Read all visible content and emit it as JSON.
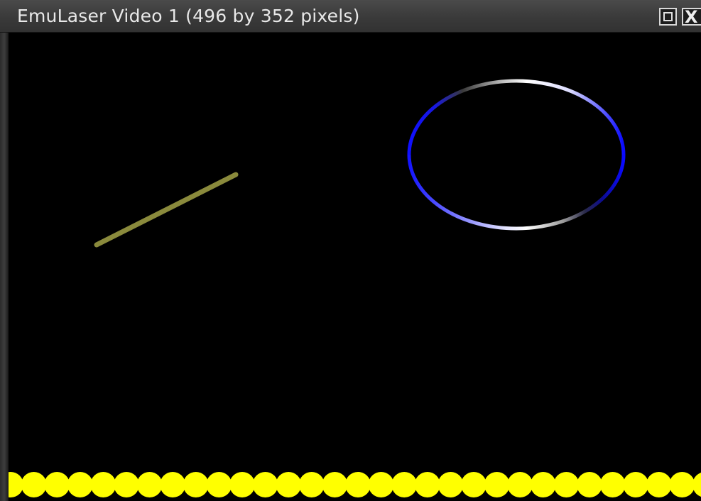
{
  "window": {
    "title": "EmuLaser Video 1 (496 by 352 pixels)",
    "maximize_icon": "maximize-icon",
    "close_icon": "close-icon",
    "close_glyph": "X"
  },
  "display": {
    "background_color": "#000000",
    "shapes": [
      {
        "type": "line",
        "name": "laser-line",
        "color": "#8a8a3c"
      },
      {
        "type": "ellipse",
        "name": "laser-ellipse",
        "colors": [
          "#1a1aff",
          "#d0d0ff",
          "#ffffff"
        ]
      },
      {
        "type": "dot-row",
        "name": "yellow-dot-row",
        "color": "#ffff00",
        "count": 31
      }
    ]
  }
}
